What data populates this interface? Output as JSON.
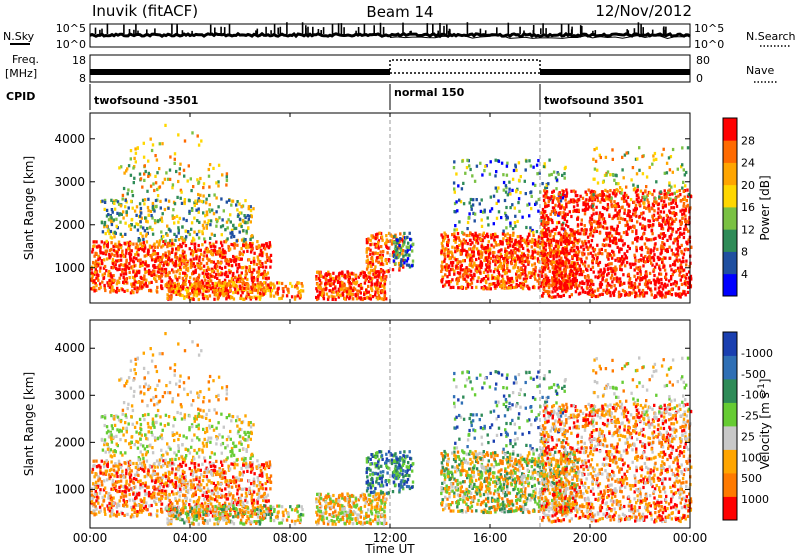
{
  "header": {
    "station": "Inuvik (fitACF)",
    "beam": "Beam 14",
    "date": "12/Nov/2012"
  },
  "noise_panel": {
    "left_label": "N.Sky",
    "left_ticks": [
      "10^5",
      "10^0"
    ],
    "right_ticks": [
      "10^5",
      "10^0"
    ],
    "right_label": "N.Search"
  },
  "freq_panel": {
    "label_line1": "Freq.",
    "label_line2": "[MHz]",
    "left_ticks": [
      "18",
      "8"
    ],
    "right_ticks": [
      "80",
      "0"
    ],
    "right_label": "Nave"
  },
  "cpid": {
    "label": "CPID",
    "segments": [
      {
        "name": "twofsound -3501",
        "start_hour": 0,
        "end_hour": 12
      },
      {
        "name": "normal 150",
        "start_hour": 12,
        "end_hour": 18
      },
      {
        "name": "twofsound 3501",
        "start_hour": 18,
        "end_hour": 24
      }
    ]
  },
  "colors": {
    "power_scale": [
      "#0000ff",
      "#1f4fa0",
      "#2e8b57",
      "#7ac143",
      "#ffd700",
      "#ffa500",
      "#ff6a00",
      "#ff0000"
    ],
    "velocity_scale": [
      "#1a3fb0",
      "#2f6fb5",
      "#2e8b57",
      "#66cc33",
      "#c8c8c8",
      "#ffa500",
      "#ff7a00",
      "#ff0000"
    ]
  },
  "chart_data": [
    {
      "type": "heatmap",
      "title": "",
      "xlabel": "",
      "ylabel": "Slant Range [km]",
      "xlim": [
        0,
        24
      ],
      "ylim": [
        180,
        4600
      ],
      "yticks": [
        1000,
        2000,
        3000,
        4000
      ],
      "colorbar_label": "Power [dB]",
      "colorbar_ticks": [
        "4",
        "8",
        "12",
        "16",
        "20",
        "24",
        "28"
      ],
      "colorbar_range": [
        0,
        30
      ]
    },
    {
      "type": "heatmap",
      "title": "",
      "xlabel": "Time UT",
      "ylabel": "Slant Range [km]",
      "xlim": [
        0,
        24
      ],
      "ylim": [
        180,
        4600
      ],
      "xticks": [
        "00:00",
        "04:00",
        "08:00",
        "12:00",
        "16:00",
        "20:00",
        "00:00"
      ],
      "yticks": [
        1000,
        2000,
        3000,
        4000
      ],
      "colorbar_label": "Velocity [m s^-1]",
      "colorbar_ticks": [
        "1000",
        "500",
        "100",
        "25",
        "-25",
        "-100",
        "-500",
        "-1000"
      ]
    }
  ]
}
